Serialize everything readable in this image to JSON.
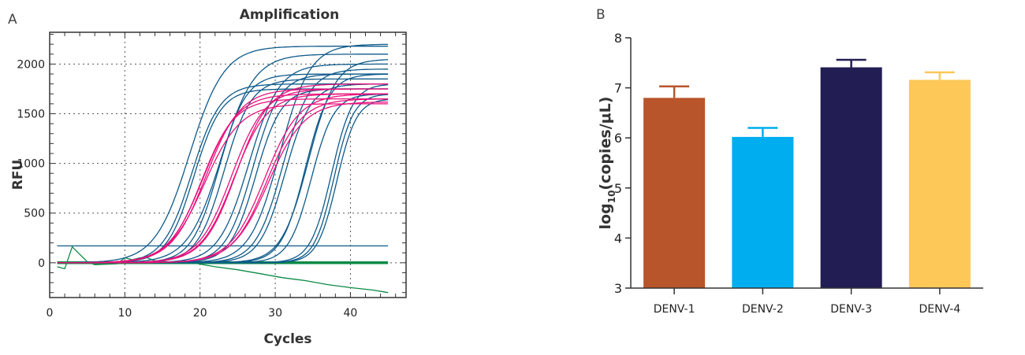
{
  "panels": {
    "a_label": "A",
    "b_label": "B"
  },
  "chart_data": [
    {
      "type": "line",
      "title": "Amplification",
      "xlabel": "Cycles",
      "ylabel": "RFU",
      "xlim": [
        0,
        47.4
      ],
      "ylim": [
        -350,
        2320
      ],
      "xticks": [
        0,
        10,
        20,
        30,
        40
      ],
      "yticks": [
        0,
        500,
        1000,
        1500,
        2000
      ],
      "grid": true,
      "colors": {
        "blue": "#0E5A8A",
        "pink": "#E8127C",
        "green": "#0B8A45"
      },
      "threshold_rfu": 170,
      "cycle_range": [
        1,
        45
      ],
      "sigmoid_curves": {
        "blue": [
          [
            18.6,
            2180,
            2.3
          ],
          [
            18.9,
            1800,
            1.9
          ],
          [
            19.2,
            1750,
            1.8
          ],
          [
            22.5,
            1900,
            1.8
          ],
          [
            22.8,
            2100,
            2.2
          ],
          [
            23.2,
            1850,
            1.8
          ],
          [
            26.5,
            2000,
            2
          ],
          [
            27,
            1900,
            1.8
          ],
          [
            27.4,
            1750,
            1.7
          ],
          [
            30.6,
            2200,
            2
          ],
          [
            31,
            1950,
            1.8
          ],
          [
            31.3,
            1800,
            1.7
          ],
          [
            34,
            1900,
            1.6
          ],
          [
            34.4,
            2050,
            1.8
          ],
          [
            34.8,
            1700,
            1.5
          ],
          [
            37.5,
            1800,
            1.4
          ],
          [
            37.8,
            1700,
            1.3
          ],
          [
            38.2,
            1650,
            1.3
          ]
        ],
        "pink": [
          [
            20.2,
            1650,
            2.2
          ],
          [
            20.4,
            1700,
            2.3
          ],
          [
            20.6,
            1600,
            2.4
          ],
          [
            20.8,
            1750,
            2.3
          ],
          [
            24.2,
            1750,
            2.2
          ],
          [
            24.5,
            1700,
            2.2
          ],
          [
            24.8,
            1800,
            2.2
          ],
          [
            28.6,
            1700,
            2.3
          ],
          [
            28.9,
            1650,
            2.3
          ],
          [
            29.1,
            1620,
            2.4
          ]
        ]
      },
      "curve_fields": [
        "midpoint_cycle",
        "plateau_rfu",
        "slope_cycles"
      ],
      "green_baseline": [
        [
          1,
          0
        ],
        [
          45,
          0
        ]
      ],
      "green_drift": [
        [
          1,
          -40
        ],
        [
          2,
          -60
        ],
        [
          3,
          160
        ],
        [
          5,
          10
        ],
        [
          6,
          -20
        ],
        [
          9,
          -10
        ],
        [
          10,
          50
        ],
        [
          11,
          30
        ],
        [
          12,
          50
        ],
        [
          13,
          50
        ],
        [
          14,
          20
        ],
        [
          17,
          0
        ],
        [
          19,
          0
        ],
        [
          22,
          -40
        ],
        [
          25,
          -70
        ],
        [
          28,
          -110
        ],
        [
          31,
          -150
        ],
        [
          34,
          -180
        ],
        [
          37,
          -220
        ],
        [
          40,
          -250
        ],
        [
          43,
          -275
        ],
        [
          45,
          -300
        ]
      ]
    },
    {
      "type": "bar",
      "ylabel_main": "log",
      "ylabel_sub": "10",
      "ylabel_rest": "(copies/μL)",
      "ylim": [
        3,
        8
      ],
      "yticks": [
        3,
        4,
        5,
        6,
        7,
        8
      ],
      "categories": [
        "DENV-1",
        "DENV-2",
        "DENV-3",
        "DENV-4"
      ],
      "values": [
        6.8,
        6.02,
        7.41,
        7.16
      ],
      "error_upper": [
        7.03,
        6.2,
        7.56,
        7.31
      ],
      "colors": [
        "#B8552A",
        "#00AEEF",
        "#221D52",
        "#FDC858"
      ]
    }
  ]
}
